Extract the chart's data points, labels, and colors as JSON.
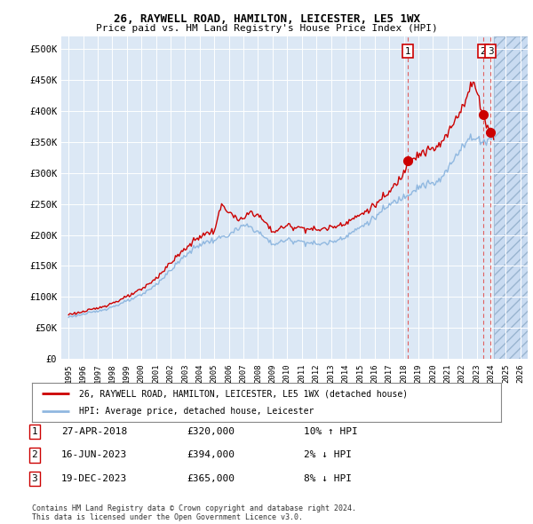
{
  "title1": "26, RAYWELL ROAD, HAMILTON, LEICESTER, LE5 1WX",
  "title2": "Price paid vs. HM Land Registry's House Price Index (HPI)",
  "background_color": "#ffffff",
  "plot_bg_color": "#dce8f5",
  "grid_color": "#ffffff",
  "hpi_color": "#90b8e0",
  "price_color": "#cc0000",
  "annotation_color": "#cc0000",
  "legend_label1": "26, RAYWELL ROAD, HAMILTON, LEICESTER, LE5 1WX (detached house)",
  "legend_label2": "HPI: Average price, detached house, Leicester",
  "sale1_date": "27-APR-2018",
  "sale1_price": "£320,000",
  "sale1_hpi": "10% ↑ HPI",
  "sale2_date": "16-JUN-2023",
  "sale2_price": "£394,000",
  "sale2_hpi": "2% ↓ HPI",
  "sale3_date": "19-DEC-2023",
  "sale3_price": "£365,000",
  "sale3_hpi": "8% ↓ HPI",
  "footer": "Contains HM Land Registry data © Crown copyright and database right 2024.\nThis data is licensed under the Open Government Licence v3.0.",
  "xmin": 1994.5,
  "xmax": 2026.5,
  "ymin": 0,
  "ymax": 520000,
  "yticks": [
    0,
    50000,
    100000,
    150000,
    200000,
    250000,
    300000,
    350000,
    400000,
    450000,
    500000
  ],
  "xticks": [
    1995,
    1996,
    1997,
    1998,
    1999,
    2000,
    2001,
    2002,
    2003,
    2004,
    2005,
    2006,
    2007,
    2008,
    2009,
    2010,
    2011,
    2012,
    2013,
    2014,
    2015,
    2016,
    2017,
    2018,
    2019,
    2020,
    2021,
    2022,
    2023,
    2024,
    2025,
    2026
  ],
  "sale_markers": [
    {
      "year": 2018.29,
      "price": 320000,
      "label": "1"
    },
    {
      "year": 2023.45,
      "price": 394000,
      "label": "2"
    },
    {
      "year": 2023.96,
      "price": 365000,
      "label": "3"
    }
  ],
  "vline_years": [
    2018.29,
    2023.45,
    2023.96
  ],
  "future_shade_start": 2024.2
}
